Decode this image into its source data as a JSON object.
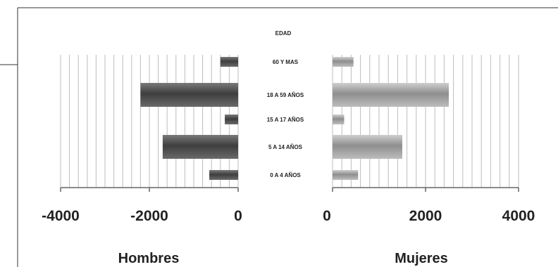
{
  "chart_data": {
    "type": "bar",
    "orientation": "horizontal",
    "title": "EDAD",
    "categories": [
      "60 Y MAS",
      "18 A 59 AÑOS",
      "15 A 17 AÑOS",
      "5 A 14 AÑOS",
      "0 A 4 AÑOS"
    ],
    "left": {
      "xlabel": "Hombres",
      "values": [
        400,
        2200,
        300,
        1700,
        650
      ],
      "xlim": [
        -4000,
        0
      ],
      "ticks": [
        "-4000",
        "-2000",
        "0"
      ]
    },
    "right": {
      "xlabel": "Mujeres",
      "values": [
        450,
        2500,
        250,
        1500,
        550
      ],
      "xlim": [
        0,
        4000
      ],
      "ticks": [
        "0",
        "2000",
        "4000"
      ]
    },
    "grid": true,
    "legend": "none",
    "colors": {
      "bar_dark": "#5a5a5a",
      "bar_light": "#b5b5b5",
      "grid": "#bdbdbd",
      "axis": "#666666"
    }
  }
}
